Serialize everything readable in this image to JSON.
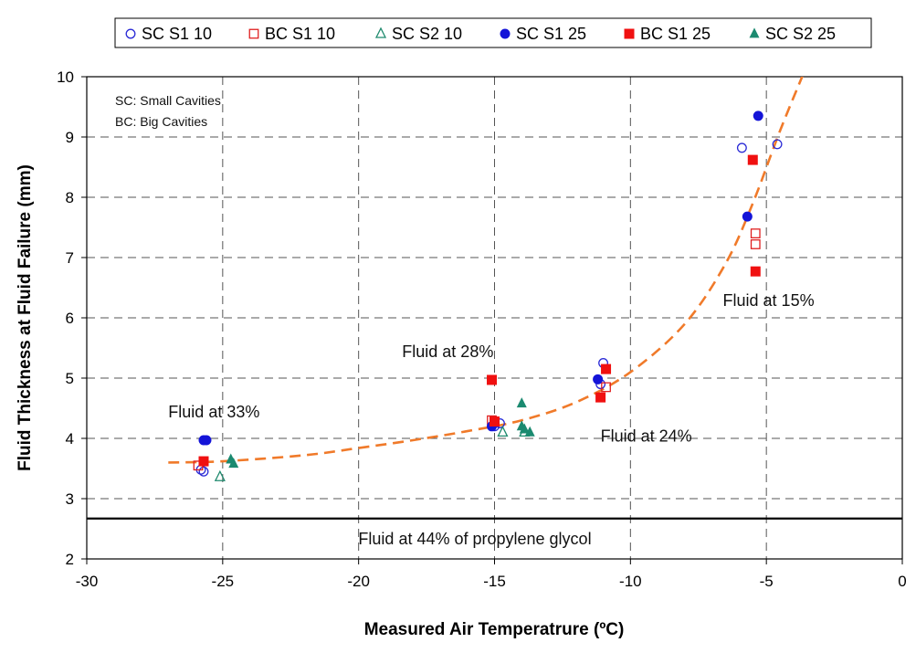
{
  "chart_data": {
    "type": "scatter",
    "xlabel": "Measured Air Temperatrure (ºC)",
    "ylabel": "Fluid Thickness at Fluid Failure (mm)",
    "xlim": [
      -30,
      0
    ],
    "ylim": [
      2,
      10
    ],
    "xticks": [
      -30,
      -25,
      -20,
      -15,
      -10,
      -5,
      0
    ],
    "yticks": [
      2,
      3,
      4,
      5,
      6,
      7,
      8,
      9,
      10
    ],
    "grid": "dashed",
    "legend_position": "top",
    "notes": [
      "SC: Small Cavities",
      "BC: Big Cavities"
    ],
    "series": [
      {
        "name": "SC S1 10",
        "marker": "circle-open",
        "color": "#2a2ad6",
        "points": [
          [
            -25.8,
            3.48
          ],
          [
            -25.7,
            3.45
          ],
          [
            -15.0,
            4.2
          ],
          [
            -14.8,
            4.25
          ],
          [
            -11.0,
            5.25
          ],
          [
            -11.1,
            4.9
          ],
          [
            -5.9,
            8.82
          ],
          [
            -4.6,
            8.88
          ]
        ]
      },
      {
        "name": "BC S1 10",
        "marker": "square-open",
        "color": "#e02020",
        "points": [
          [
            -25.9,
            3.55
          ],
          [
            -15.1,
            4.3
          ],
          [
            -10.9,
            4.85
          ],
          [
            -5.4,
            7.4
          ],
          [
            -5.4,
            7.22
          ]
        ]
      },
      {
        "name": "SC S2 10",
        "marker": "triangle-open",
        "color": "#1f8a6e",
        "points": [
          [
            -25.1,
            3.36
          ],
          [
            -14.7,
            4.1
          ],
          [
            -13.9,
            4.1
          ]
        ]
      },
      {
        "name": "SC S1 25",
        "marker": "circle-filled",
        "color": "#1414d8",
        "points": [
          [
            -25.7,
            3.97
          ],
          [
            -25.6,
            3.97
          ],
          [
            -15.1,
            4.2
          ],
          [
            -11.2,
            4.98
          ],
          [
            -5.7,
            7.68
          ],
          [
            -5.3,
            9.35
          ]
        ]
      },
      {
        "name": "BC S1 25",
        "marker": "square-filled",
        "color": "#f01010",
        "points": [
          [
            -25.7,
            3.62
          ],
          [
            -15.1,
            4.97
          ],
          [
            -15.0,
            4.28
          ],
          [
            -11.1,
            4.68
          ],
          [
            -10.9,
            5.15
          ],
          [
            -5.5,
            8.62
          ],
          [
            -5.4,
            6.77
          ]
        ]
      },
      {
        "name": "SC S2 25",
        "marker": "triangle-filled",
        "color": "#1b8a70",
        "points": [
          [
            -24.7,
            3.65
          ],
          [
            -24.6,
            3.58
          ],
          [
            -14.0,
            4.58
          ],
          [
            -14.0,
            4.2
          ],
          [
            -13.9,
            4.15
          ],
          [
            -13.7,
            4.1
          ]
        ]
      }
    ],
    "trend_line": {
      "style": "dashed",
      "color": "#f07a2a",
      "points": [
        [
          -27.0,
          3.6
        ],
        [
          -25.0,
          3.62
        ],
        [
          -22.0,
          3.72
        ],
        [
          -20.0,
          3.84
        ],
        [
          -18.0,
          3.97
        ],
        [
          -16.0,
          4.12
        ],
        [
          -14.0,
          4.3
        ],
        [
          -12.0,
          4.6
        ],
        [
          -10.0,
          5.1
        ],
        [
          -8.0,
          5.9
        ],
        [
          -6.5,
          6.9
        ],
        [
          -5.5,
          7.9
        ],
        [
          -4.5,
          9.1
        ],
        [
          -3.5,
          10.2
        ]
      ]
    },
    "reference_line": {
      "y": 2.67,
      "label": "Fluid at 44% of propylene glycol",
      "color": "#000000"
    },
    "annotations": [
      {
        "text": "Fluid at 33%",
        "x": -27.0,
        "y": 4.35
      },
      {
        "text": "Fluid at 28%",
        "x": -18.4,
        "y": 5.35
      },
      {
        "text": "Fluid at 24%",
        "x": -11.1,
        "y": 3.95
      },
      {
        "text": "Fluid at 15%",
        "x": -6.6,
        "y": 6.2
      }
    ]
  }
}
